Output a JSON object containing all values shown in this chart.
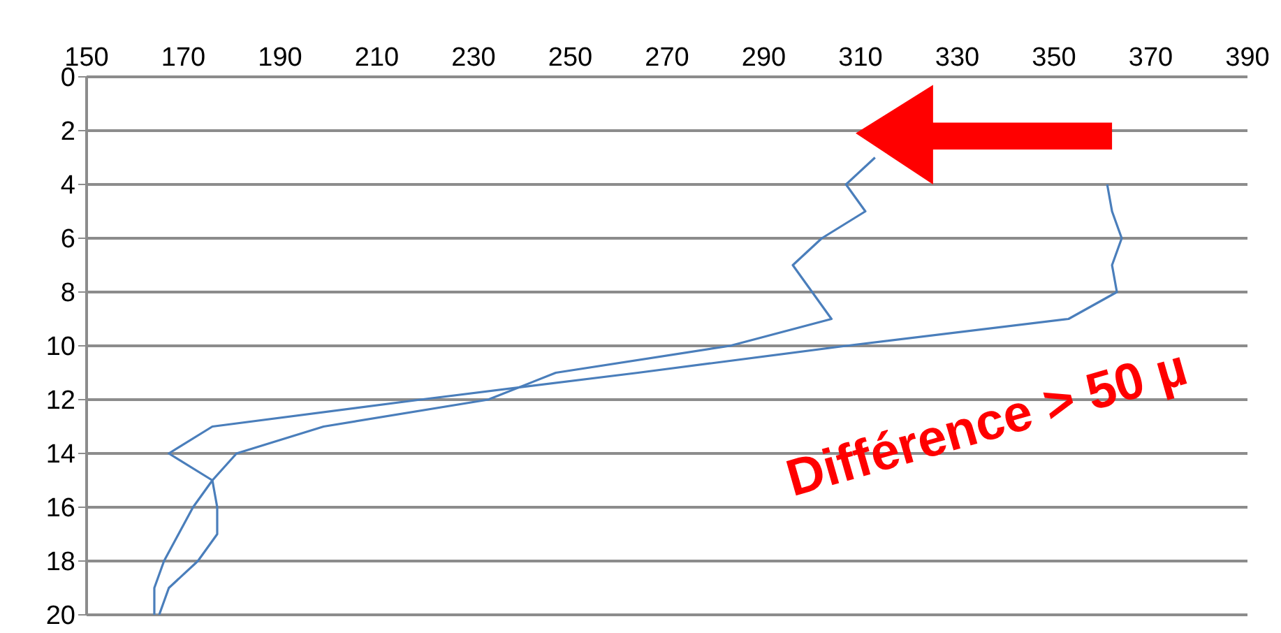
{
  "chart_data": {
    "type": "line",
    "series": [
      {
        "color": "#4a7ebb",
        "x": [
          313,
          307,
          311,
          302,
          296,
          300,
          304,
          283,
          247,
          233,
          199,
          181,
          176,
          177,
          177,
          173,
          167,
          165
        ],
        "values": [
          3,
          4,
          5,
          6,
          7,
          8,
          9,
          10,
          11,
          12,
          13,
          14,
          15,
          16,
          17,
          18,
          19,
          20
        ]
      },
      {
        "color": "#4a7ebb",
        "x": [
          361,
          362,
          364,
          362,
          363,
          353,
          307,
          264,
          219,
          176,
          167,
          176,
          172,
          169,
          166,
          164,
          164
        ],
        "values": [
          4,
          5,
          6,
          7,
          8,
          9,
          10,
          11,
          12,
          13,
          14,
          15,
          16,
          17,
          18,
          19,
          20
        ]
      }
    ],
    "xlim": [
      150,
      390
    ],
    "xticks": [
      150,
      170,
      190,
      210,
      230,
      250,
      270,
      290,
      310,
      330,
      350,
      370,
      390
    ],
    "ylim": [
      20,
      0
    ],
    "yticks": [
      0,
      2,
      4,
      6,
      8,
      10,
      12,
      14,
      16,
      18,
      20
    ],
    "grid": "y",
    "marker": "none",
    "line_style": "solid",
    "annotations": [
      "Différence > 50 µ"
    ]
  }
}
